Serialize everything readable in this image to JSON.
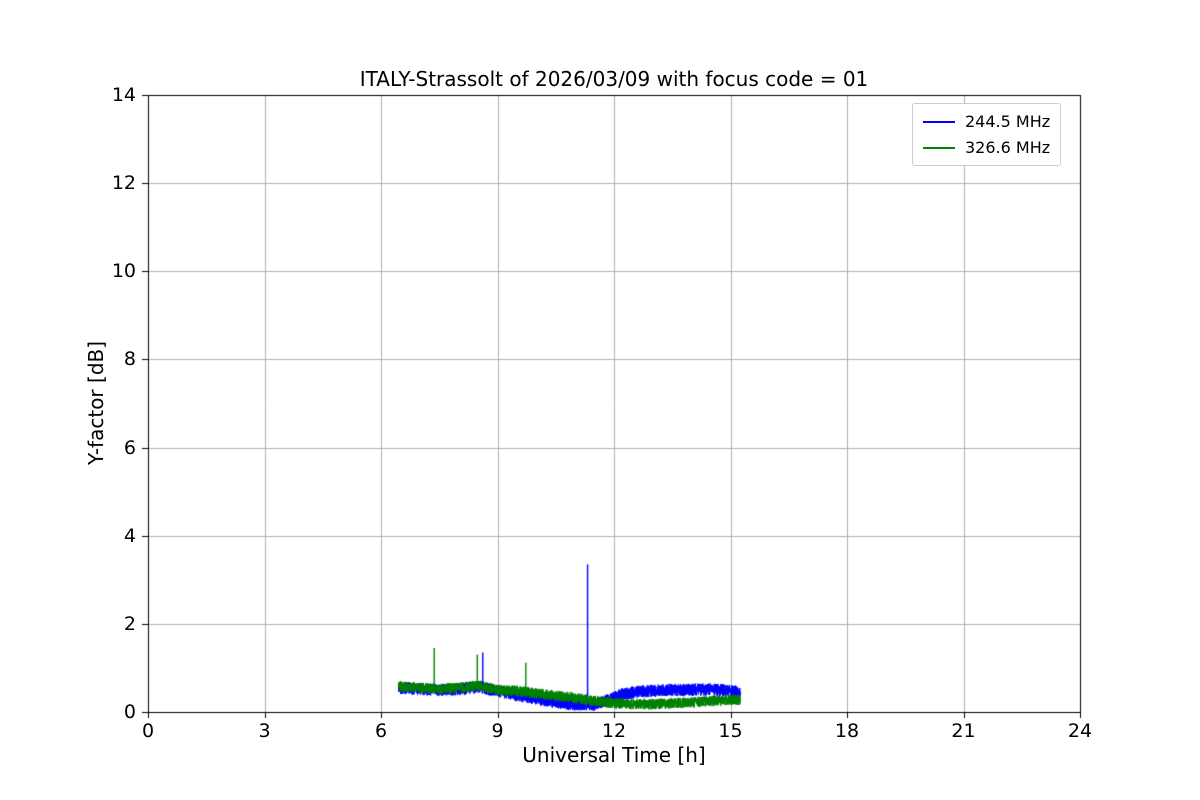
{
  "chart_data": {
    "type": "line",
    "title": "ITALY-Strassolt of 2026/03/09 with focus code = 01",
    "xlabel": "Universal Time [h]",
    "ylabel": "Y-factor [dB]",
    "xlim": [
      0,
      24
    ],
    "ylim": [
      0,
      14
    ],
    "xticks": [
      0,
      3,
      6,
      9,
      12,
      15,
      18,
      21,
      24
    ],
    "yticks": [
      0,
      2,
      4,
      6,
      8,
      10,
      12,
      14
    ],
    "grid": true,
    "grid_color": "#b0b0b0",
    "frame_color": "#000000",
    "background_color": "#ffffff",
    "legend_position": "upper right",
    "series": [
      {
        "name": "244.5 MHz",
        "color": "#0000ff",
        "x_range": [
          6.45,
          15.25
        ],
        "noise_amplitude": 0.14,
        "baseline": [
          [
            6.45,
            0.55
          ],
          [
            7.0,
            0.52
          ],
          [
            7.5,
            0.5
          ],
          [
            8.0,
            0.52
          ],
          [
            8.5,
            0.57
          ],
          [
            9.0,
            0.48
          ],
          [
            9.5,
            0.38
          ],
          [
            10.0,
            0.3
          ],
          [
            10.5,
            0.22
          ],
          [
            11.0,
            0.17
          ],
          [
            11.5,
            0.17
          ],
          [
            11.8,
            0.25
          ],
          [
            12.2,
            0.4
          ],
          [
            12.6,
            0.46
          ],
          [
            13.0,
            0.48
          ],
          [
            13.5,
            0.5
          ],
          [
            14.0,
            0.5
          ],
          [
            14.5,
            0.52
          ],
          [
            15.25,
            0.45
          ]
        ],
        "spikes": [
          [
            8.62,
            1.35
          ],
          [
            11.32,
            3.35
          ]
        ]
      },
      {
        "name": "326.6 MHz",
        "color": "#008000",
        "x_range": [
          6.45,
          15.25
        ],
        "noise_amplitude": 0.12,
        "baseline": [
          [
            6.45,
            0.58
          ],
          [
            7.0,
            0.55
          ],
          [
            7.5,
            0.52
          ],
          [
            8.0,
            0.55
          ],
          [
            8.5,
            0.6
          ],
          [
            9.0,
            0.5
          ],
          [
            9.5,
            0.48
          ],
          [
            10.0,
            0.42
          ],
          [
            10.5,
            0.37
          ],
          [
            11.0,
            0.32
          ],
          [
            11.5,
            0.25
          ],
          [
            12.0,
            0.2
          ],
          [
            12.5,
            0.18
          ],
          [
            13.0,
            0.18
          ],
          [
            13.5,
            0.2
          ],
          [
            14.0,
            0.22
          ],
          [
            14.5,
            0.25
          ],
          [
            15.25,
            0.28
          ]
        ],
        "spikes": [
          [
            7.37,
            1.45
          ],
          [
            8.48,
            1.3
          ],
          [
            9.73,
            1.12
          ]
        ]
      }
    ]
  }
}
